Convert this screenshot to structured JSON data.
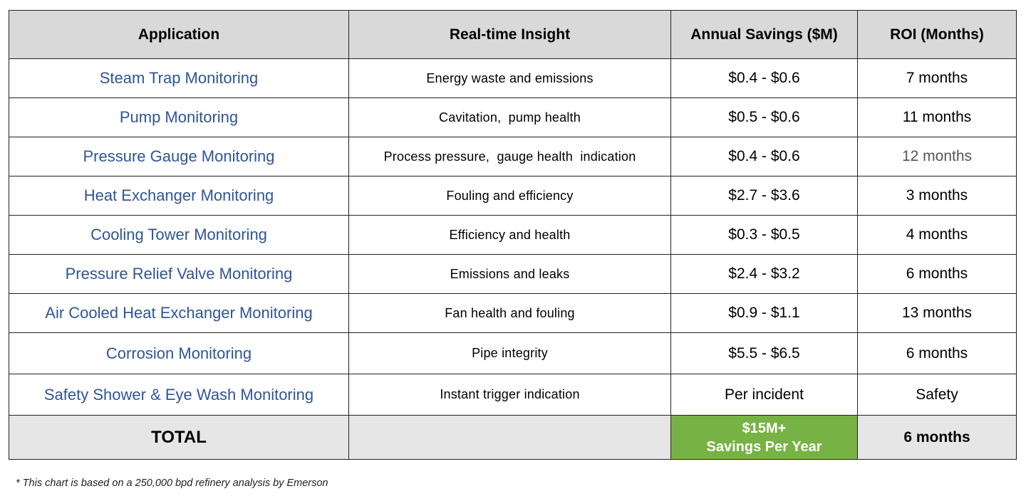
{
  "table": {
    "headers": {
      "application": "Application",
      "insight": "Real-time Insight",
      "savings": "Annual Savings ($M)",
      "roi": "ROI (Months)"
    },
    "rows": [
      {
        "application": "Steam Trap Monitoring",
        "insight": "Energy waste and emissions",
        "savings": "$0.4 - $0.6",
        "roi": "7 months"
      },
      {
        "application": "Pump Monitoring",
        "insight": "Cavitation,  pump health",
        "savings": "$0.5 - $0.6",
        "roi": "11 months"
      },
      {
        "application": "Pressure Gauge Monitoring",
        "insight": "Process pressure,  gauge health  indication",
        "savings": "$0.4 - $0.6",
        "roi": "12 months"
      },
      {
        "application": "Heat Exchanger Monitoring",
        "insight": "Fouling and efficiency",
        "savings": "$2.7 - $3.6",
        "roi": "3 months"
      },
      {
        "application": "Cooling Tower Monitoring",
        "insight": "Efficiency and health",
        "savings": "$0.3 - $0.5",
        "roi": "4 months"
      },
      {
        "application": "Pressure Relief Valve Monitoring",
        "insight": "Emissions and leaks",
        "savings": "$2.4 - $3.2",
        "roi": "6 months"
      },
      {
        "application": "Air Cooled Heat Exchanger Monitoring",
        "insight": "Fan health and fouling",
        "savings": "$0.9 - $1.1",
        "roi": "13 months"
      },
      {
        "application": "Corrosion Monitoring",
        "insight": "Pipe integrity",
        "savings": "$5.5 - $6.5",
        "roi": "6 months"
      },
      {
        "application": "Safety Shower & Eye Wash Monitoring",
        "insight": "Instant trigger indication",
        "savings": "Per incident",
        "roi": "Safety"
      }
    ],
    "total": {
      "label": "TOTAL",
      "insight": "",
      "savings_line1": "$15M+",
      "savings_line2": "Savings Per Year",
      "roi": "6 months"
    }
  },
  "footnote": "* This chart is based on a 250,000 bpd refinery analysis by Emerson",
  "colors": {
    "application_text": "#2f5597",
    "header_bg": "#d9d9d9",
    "total_bg": "#e7e6e6",
    "total_savings_bg": "#77b244"
  }
}
